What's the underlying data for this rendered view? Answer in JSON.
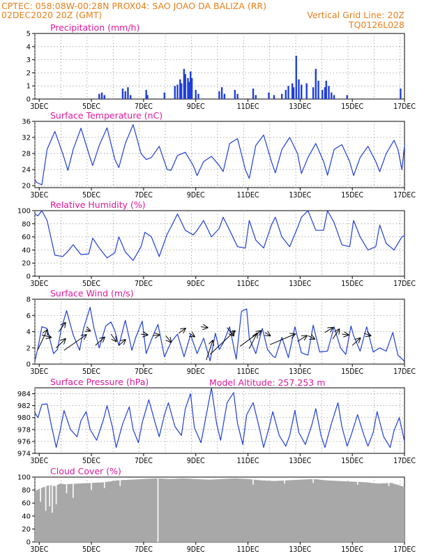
{
  "header": {
    "line1_left": "CPTEC:   058:08W-00:28N   PROX04: SAO JOAO DA BALIZA (RR)",
    "line2_left": "02DEC2020 20Z (GMT)",
    "line2_right": "Vertical Grid Line: 20Z",
    "line3_right": "TQ0126L028",
    "altitude": "Model Altitude: 257.253 m"
  },
  "colors": {
    "header": "#e8801a",
    "titles": "#e0189a",
    "series": "#1f3fd8",
    "cloud": "#a8a8a8",
    "grid": "#999999"
  },
  "chart_data": [
    {
      "type": "bar",
      "title": "Precipitation (mm/h)",
      "xlabel": "",
      "ylabel": "",
      "ylim": [
        0,
        5
      ],
      "yticks": [
        0,
        1,
        2,
        3,
        4,
        5
      ],
      "xticks": [
        "3DEC",
        "5DEC",
        "7DEC",
        "9DEC",
        "11DEC",
        "13DEC",
        "15DEC",
        "17DEC"
      ],
      "x_start_day": 2.833,
      "x_end_day": 17.0,
      "values": [
        [
          5.3,
          0.4
        ],
        [
          5.4,
          0.5
        ],
        [
          5.5,
          0.3
        ],
        [
          6.2,
          0.8
        ],
        [
          6.3,
          0.6
        ],
        [
          6.4,
          0.9
        ],
        [
          6.5,
          0.3
        ],
        [
          7.1,
          0.7
        ],
        [
          7.15,
          0.3
        ],
        [
          7.8,
          0.5
        ],
        [
          8.2,
          1.0
        ],
        [
          8.3,
          1.1
        ],
        [
          8.4,
          1.5
        ],
        [
          8.45,
          1.2
        ],
        [
          8.55,
          2.3
        ],
        [
          8.6,
          1.9
        ],
        [
          8.7,
          1.6
        ],
        [
          8.75,
          1.3
        ],
        [
          8.8,
          2.1
        ],
        [
          8.85,
          1.6
        ],
        [
          9.0,
          0.7
        ],
        [
          9.1,
          0.4
        ],
        [
          9.9,
          0.6
        ],
        [
          10.0,
          0.9
        ],
        [
          10.1,
          0.4
        ],
        [
          10.5,
          0.7
        ],
        [
          10.6,
          0.4
        ],
        [
          11.2,
          0.8
        ],
        [
          11.3,
          0.3
        ],
        [
          11.8,
          0.5
        ],
        [
          12.0,
          0.3
        ],
        [
          12.3,
          0.4
        ],
        [
          12.45,
          0.7
        ],
        [
          12.55,
          1.0
        ],
        [
          12.7,
          1.2
        ],
        [
          12.75,
          0.9
        ],
        [
          12.85,
          3.3
        ],
        [
          12.95,
          1.5
        ],
        [
          13.05,
          1.1
        ],
        [
          13.25,
          1.2
        ],
        [
          13.5,
          0.9
        ],
        [
          13.6,
          2.3
        ],
        [
          13.7,
          1.4
        ],
        [
          13.85,
          0.7
        ],
        [
          13.95,
          0.9
        ],
        [
          14.0,
          1.4
        ],
        [
          14.1,
          1.0
        ],
        [
          14.2,
          0.5
        ],
        [
          14.3,
          0.3
        ],
        [
          14.8,
          0.3
        ],
        [
          16.85,
          0.8
        ]
      ]
    },
    {
      "type": "line",
      "title": "Surface Temperature (nC)",
      "xlabel": "",
      "ylabel": "",
      "ylim": [
        19.5,
        36
      ],
      "yticks": [
        20,
        24,
        28,
        32,
        36
      ],
      "xticks": [
        "3DEC",
        "5DEC",
        "7DEC",
        "9DEC",
        "11DEC",
        "13DEC",
        "15DEC",
        "17DEC"
      ],
      "x_start_day": 2.833,
      "x_end_day": 17.0,
      "x": [
        2.833,
        2.9,
        3.1,
        3.3,
        3.6,
        3.9,
        4.1,
        4.3,
        4.6,
        4.9,
        5.05,
        5.3,
        5.6,
        5.9,
        6.05,
        6.3,
        6.6,
        6.9,
        7.1,
        7.3,
        7.6,
        7.9,
        8.05,
        8.3,
        8.6,
        8.9,
        9.05,
        9.3,
        9.6,
        9.9,
        10.05,
        10.3,
        10.6,
        10.9,
        11.05,
        11.3,
        11.6,
        11.9,
        12.05,
        12.3,
        12.6,
        12.9,
        13.05,
        13.3,
        13.6,
        13.9,
        14.05,
        14.3,
        14.6,
        14.9,
        15.05,
        15.3,
        15.6,
        15.9,
        16.05,
        16.3,
        16.6,
        16.75,
        16.9,
        17.0
      ],
      "y": [
        21.5,
        20.8,
        20.2,
        29,
        33.5,
        28,
        23.8,
        29,
        34.3,
        28,
        25,
        30,
        34.4,
        26.5,
        24.5,
        30.5,
        35.2,
        28,
        26.5,
        27,
        29.8,
        24,
        23.8,
        27.5,
        28.3,
        25,
        22.5,
        26,
        27.3,
        25,
        23.5,
        30.5,
        31.7,
        24,
        21.8,
        30,
        32.6,
        26,
        23.2,
        29,
        32,
        28,
        23,
        27,
        30.5,
        26,
        22.6,
        29,
        30.2,
        26,
        22.5,
        27,
        29.8,
        26,
        23.5,
        28,
        31.3,
        29,
        24,
        30
      ]
    },
    {
      "type": "line",
      "title": "Relative Humidity (%)",
      "xlabel": "",
      "ylabel": "",
      "ylim": [
        0,
        100
      ],
      "yticks": [
        0,
        20,
        40,
        60,
        80,
        100
      ],
      "xticks": [
        "3DEC",
        "5DEC",
        "7DEC",
        "9DEC",
        "11DEC",
        "13DEC",
        "15DEC",
        "17DEC"
      ],
      "x_start_day": 2.833,
      "x_end_day": 17.0,
      "x": [
        2.833,
        2.95,
        3.1,
        3.3,
        3.6,
        3.9,
        4.1,
        4.3,
        4.6,
        4.9,
        5.05,
        5.3,
        5.6,
        5.9,
        6.05,
        6.3,
        6.6,
        6.9,
        7.05,
        7.3,
        7.6,
        7.9,
        8.05,
        8.3,
        8.6,
        8.9,
        9.05,
        9.3,
        9.6,
        9.9,
        10.05,
        10.3,
        10.6,
        10.9,
        11.05,
        11.3,
        11.6,
        11.9,
        12.05,
        12.3,
        12.6,
        12.9,
        13.05,
        13.3,
        13.6,
        13.9,
        14.05,
        14.3,
        14.6,
        14.9,
        15.05,
        15.3,
        15.6,
        15.9,
        16.05,
        16.3,
        16.6,
        16.9,
        17.0
      ],
      "y": [
        95,
        92,
        100,
        85,
        32,
        30,
        38,
        48,
        33,
        34,
        58,
        43,
        28,
        36,
        60,
        37,
        24,
        45,
        67,
        60,
        30,
        64,
        75,
        95,
        70,
        63,
        70,
        85,
        60,
        73,
        90,
        70,
        45,
        43,
        85,
        55,
        43,
        78,
        90,
        60,
        45,
        74,
        90,
        100,
        70,
        70,
        100,
        82,
        48,
        45,
        85,
        60,
        40,
        45,
        78,
        50,
        40,
        60,
        62
      ]
    },
    {
      "type": "line",
      "title": "Surface Wind (m/s)",
      "xlabel": "",
      "ylabel": "",
      "ylim": [
        0,
        8
      ],
      "yticks": [
        0,
        2,
        4,
        6,
        8
      ],
      "xticks": [
        "3DEC",
        "5DEC",
        "7DEC",
        "9DEC",
        "11DEC",
        "13DEC",
        "15DEC",
        "17DEC"
      ],
      "x_start_day": 2.833,
      "x_end_day": 17.0,
      "x": [
        2.833,
        2.95,
        3.1,
        3.3,
        3.55,
        3.7,
        3.85,
        4.05,
        4.3,
        4.55,
        4.7,
        4.95,
        5.1,
        5.3,
        5.55,
        5.75,
        5.9,
        6.05,
        6.3,
        6.55,
        6.7,
        6.95,
        7.1,
        7.3,
        7.55,
        7.8,
        8.05,
        8.3,
        8.55,
        8.8,
        9.05,
        9.3,
        9.55,
        9.75,
        9.9,
        10.05,
        10.3,
        10.55,
        10.75,
        10.95,
        11.05,
        11.3,
        11.55,
        11.75,
        11.95,
        12.05,
        12.3,
        12.55,
        12.8,
        13.05,
        13.3,
        13.5,
        13.75,
        14.05,
        14.3,
        14.55,
        14.75,
        14.95,
        15.05,
        15.3,
        15.55,
        15.8,
        16.05,
        16.3,
        16.55,
        16.75,
        16.95,
        17.0
      ],
      "y": [
        0.4,
        2,
        4.6,
        4.4,
        1.3,
        1.8,
        4.4,
        6.6,
        3.6,
        1.7,
        4.4,
        7,
        4.4,
        2,
        4.7,
        5.2,
        4.1,
        2.3,
        5.4,
        1.7,
        3.3,
        5.3,
        1.3,
        3,
        4.9,
        0.9,
        2.7,
        3.7,
        0.9,
        3.6,
        1.3,
        3.2,
        0.4,
        3.8,
        1.8,
        2.6,
        4.6,
        0.6,
        6.5,
        6.8,
        3.2,
        1.3,
        4.4,
        1.8,
        1.0,
        0.8,
        3.3,
        0.8,
        4.6,
        1.4,
        1.1,
        4.8,
        1.5,
        1.6,
        4.6,
        2.0,
        1.2,
        4.7,
        3.5,
        1.6,
        4.6,
        1.5,
        2.0,
        1.6,
        3.9,
        1.1,
        0.5,
        0.3
      ],
      "vectors": [
        [
          2.95,
          1.8,
          3.3,
          4.2
        ],
        [
          3.1,
          3.6,
          3.45,
          3.3
        ],
        [
          3.65,
          2.0,
          4.0,
          3.1
        ],
        [
          3.75,
          4.0,
          4.0,
          5.1
        ],
        [
          3.95,
          1.7,
          4.8,
          3.6
        ],
        [
          4.8,
          4.3,
          4.95,
          4.1
        ],
        [
          5.15,
          2.3,
          5.5,
          3.3
        ],
        [
          5.75,
          3.7,
          5.95,
          2.8
        ],
        [
          6.05,
          2.3,
          6.3,
          3.0
        ],
        [
          6.9,
          3.7,
          7.15,
          3.6
        ],
        [
          7.35,
          3.5,
          7.6,
          3.6
        ],
        [
          7.85,
          3.5,
          8.05,
          2.7
        ],
        [
          8.35,
          3.8,
          8.6,
          4.4
        ],
        [
          8.75,
          3.8,
          8.95,
          3.4
        ],
        [
          9.2,
          4.6,
          9.45,
          4.5
        ],
        [
          9.4,
          0.5,
          9.65,
          2.9
        ],
        [
          9.55,
          1.2,
          10.5,
          4.1
        ],
        [
          10.2,
          4.5,
          10.45,
          3.5
        ],
        [
          10.7,
          2.2,
          11.5,
          4.1
        ],
        [
          11.05,
          1.9,
          11.35,
          3.8
        ],
        [
          11.65,
          3.9,
          11.85,
          3.5
        ],
        [
          11.85,
          2.4,
          12.8,
          3.7
        ],
        [
          12.9,
          2.8,
          13.25,
          3.5
        ],
        [
          13.3,
          3.5,
          13.55,
          3.1
        ],
        [
          13.95,
          3.9,
          14.25,
          4.5
        ],
        [
          14.25,
          3.1,
          14.5,
          4.3
        ],
        [
          14.6,
          3.7,
          14.85,
          3.6
        ],
        [
          15.0,
          2.3,
          15.3,
          3.2
        ],
        [
          15.45,
          3.8,
          15.7,
          3.5
        ]
      ]
    },
    {
      "type": "line",
      "title": "Surface Pressure (hPa)",
      "xlabel": "",
      "ylabel": "",
      "ylim": [
        974,
        985
      ],
      "yticks": [
        974,
        976,
        978,
        980,
        982,
        984
      ],
      "xticks": [
        "3DEC",
        "5DEC",
        "7DEC",
        "9DEC",
        "11DEC",
        "13DEC",
        "15DEC",
        "17DEC"
      ],
      "x_start_day": 2.833,
      "x_end_day": 17.0,
      "x": [
        2.833,
        2.95,
        3.1,
        3.3,
        3.45,
        3.65,
        3.8,
        3.95,
        4.2,
        4.45,
        4.6,
        4.8,
        4.95,
        5.2,
        5.45,
        5.6,
        5.8,
        5.95,
        6.2,
        6.45,
        6.6,
        6.8,
        6.95,
        7.2,
        7.45,
        7.6,
        7.8,
        7.95,
        8.2,
        8.45,
        8.6,
        8.8,
        8.95,
        9.2,
        9.45,
        9.6,
        9.8,
        9.95,
        10.2,
        10.45,
        10.6,
        10.8,
        10.95,
        11.2,
        11.45,
        11.6,
        11.8,
        11.95,
        12.2,
        12.45,
        12.6,
        12.8,
        12.95,
        13.2,
        13.45,
        13.6,
        13.8,
        13.95,
        14.2,
        14.45,
        14.6,
        14.8,
        14.95,
        15.2,
        15.45,
        15.6,
        15.8,
        15.95,
        16.2,
        16.45,
        16.6,
        16.8,
        17.0
      ],
      "y": [
        980.8,
        980,
        982.2,
        982.3,
        979,
        975,
        977.8,
        981.2,
        978,
        976.8,
        979.5,
        981,
        978,
        976.2,
        979.5,
        982,
        978.5,
        975,
        979,
        981.8,
        978,
        975.8,
        979.2,
        983,
        979,
        976.8,
        980.5,
        982.5,
        978.5,
        977,
        981.5,
        984,
        978.3,
        975.8,
        981.5,
        985,
        979,
        976.2,
        982.5,
        984.2,
        979,
        975.5,
        980.5,
        982.5,
        978,
        975,
        978.2,
        981,
        977,
        975.2,
        977,
        981.2,
        977.5,
        975.5,
        978.8,
        981.5,
        977,
        975,
        979,
        982.5,
        978.5,
        975.2,
        977,
        980.5,
        977,
        975.2,
        977.5,
        981,
        976.8,
        975,
        977.8,
        980,
        976
      ]
    },
    {
      "type": "bar",
      "title": "Cloud Cover (%)",
      "xlabel": "",
      "ylabel": "",
      "ylim": [
        0,
        100
      ],
      "yticks": [
        0,
        20,
        40,
        60,
        80,
        100
      ],
      "xticks": [
        "3DEC",
        "5DEC",
        "7DEC",
        "9DEC",
        "11DEC",
        "13DEC",
        "15DEC",
        "17DEC"
      ],
      "x_start_day": 2.833,
      "x_end_day": 17.0,
      "x": [
        2.833,
        3.0,
        3.2,
        3.4,
        3.6,
        3.8,
        4.0,
        4.5,
        5.0,
        5.5,
        6.0,
        6.5,
        7.0,
        7.45,
        7.55,
        8.0,
        8.5,
        9.0,
        9.5,
        10.0,
        10.5,
        11.0,
        11.5,
        12.0,
        12.5,
        13.0,
        13.5,
        14.0,
        14.5,
        15.0,
        15.5,
        16.0,
        16.5,
        17.0
      ],
      "y": [
        78,
        82,
        85,
        88,
        86,
        90,
        89,
        90,
        91,
        92,
        95,
        96,
        97,
        98,
        98,
        97,
        98,
        97,
        96,
        97,
        98,
        97,
        95,
        94,
        95,
        96,
        97,
        95,
        94,
        93,
        92,
        90,
        91,
        85
      ],
      "dips": [
        [
          3.05,
          62
        ],
        [
          3.25,
          48
        ],
        [
          3.4,
          55
        ],
        [
          3.5,
          45
        ],
        [
          3.65,
          58
        ],
        [
          4.05,
          75
        ],
        [
          4.3,
          68
        ],
        [
          5.0,
          80
        ],
        [
          5.5,
          83
        ],
        [
          6.1,
          86
        ],
        [
          7.55,
          0
        ],
        [
          11.2,
          88
        ],
        [
          12.4,
          90
        ],
        [
          13.5,
          91
        ],
        [
          15.2,
          88
        ],
        [
          16.4,
          86
        ]
      ]
    }
  ]
}
